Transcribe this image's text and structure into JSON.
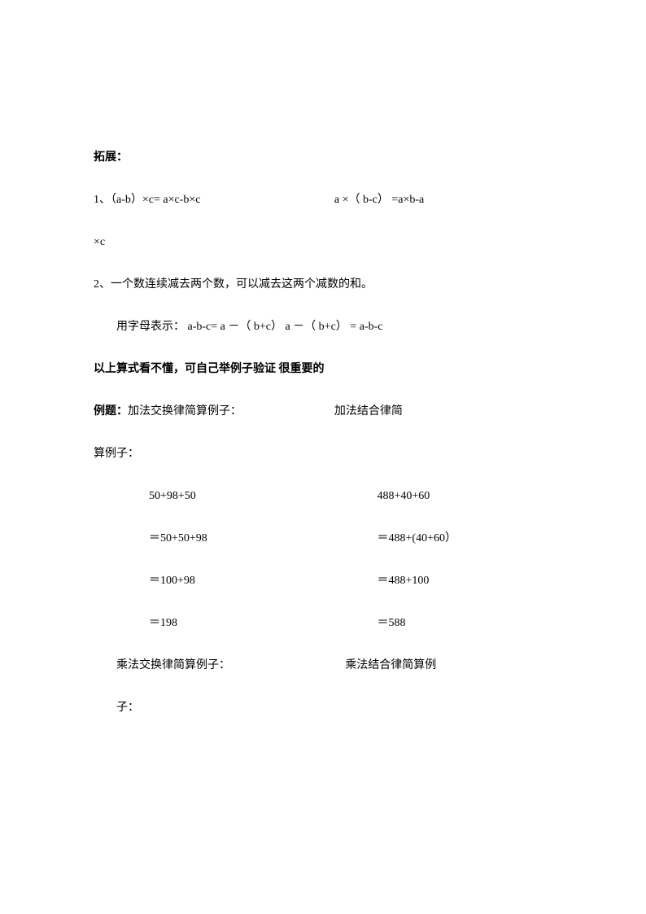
{
  "sec_title": "拓展：",
  "item1_left": "1、（a-b）×c= a×c-b×c",
  "item1_right": "a ×（ b-c）  =a×b-a",
  "item1_cont": "×c",
  "item2": "2、一个数连续减去两个数，可以减去这两个减数的和。",
  "item2_letter": "用字母表示： a-b-c= a －（ b+c）    a －（ b+c） = a-b-c",
  "note": "以上算式看不懂，可自己举例子验证 很重要的",
  "ex_label": "例题：",
  "ex_left_title": "加法交换律简算例子：",
  "ex_right_title": "加法结合律简",
  "ex_right_title_cont": "算例子：",
  "row1_l": "50+98+50",
  "row1_r": "488+40+60",
  "row2_l": "＝50+50+98",
  "row2_r": "＝488+(40+60）",
  "row3_l": "＝100+98",
  "row3_r": "＝488+100",
  "row4_l": "＝198",
  "row4_r": "＝588",
  "mul_l": "乘法交换律简算例子：",
  "mul_r": "乘法结合律简算例",
  "mul_r_cont": "子：",
  "colors": {
    "text": "#000000",
    "background": "#ffffff"
  },
  "typography": {
    "body_fontsize_pt": 10.5,
    "body_font": "SimSun",
    "line_spacing": 2.0
  }
}
